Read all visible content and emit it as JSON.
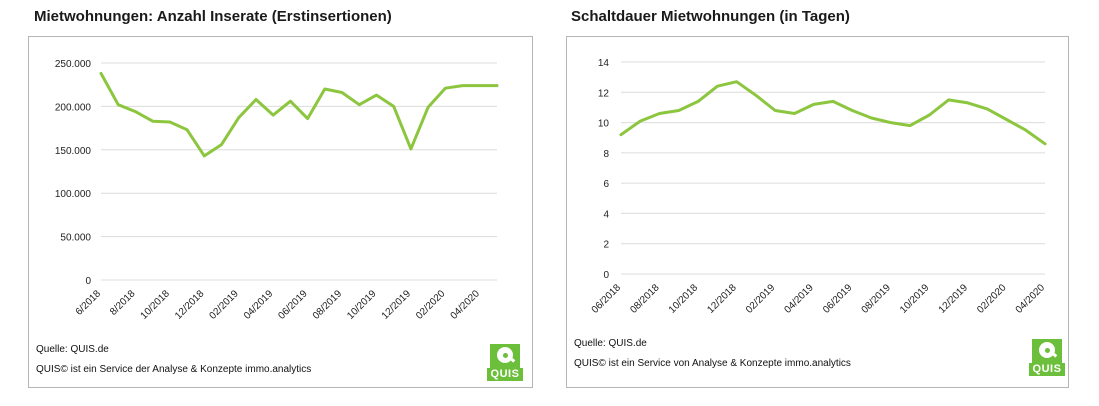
{
  "chart_data": [
    {
      "type": "line",
      "title": "Mietwohnungen: Anzahl Inserate (Erstinsertionen)",
      "x": [
        "6/2018",
        "7/2018",
        "8/2018",
        "9/2018",
        "10/2018",
        "11/2018",
        "12/2018",
        "01/2019",
        "02/2019",
        "03/2019",
        "04/2019",
        "05/2019",
        "06/2019",
        "07/2019",
        "08/2019",
        "09/2019",
        "10/2019",
        "11/2019",
        "12/2019",
        "01/2020",
        "02/2020",
        "03/2020",
        "04/2020",
        "05/2020"
      ],
      "x_tick_labels": [
        "6/2018",
        "8/2018",
        "10/2018",
        "12/2018",
        "02/2019",
        "04/2019",
        "06/2019",
        "08/2019",
        "10/2019",
        "12/2019",
        "02/2020",
        "04/2020"
      ],
      "series": [
        {
          "values": [
            238000,
            202000,
            194000,
            183000,
            182000,
            173000,
            143000,
            156000,
            187000,
            208000,
            190000,
            206000,
            186000,
            220000,
            216000,
            202000,
            213000,
            200000,
            151000,
            199000,
            221000,
            224000,
            224000,
            224000
          ]
        }
      ],
      "y_ticks": [
        "0",
        "50.000",
        "100.000",
        "150.000",
        "200.000",
        "250.000"
      ],
      "ylim": [
        0,
        250000
      ],
      "grid": true,
      "color": "#8cc63f"
    },
    {
      "type": "line",
      "title": "Schaltdauer Mietwohnungen (in Tagen)",
      "x": [
        "06/2018",
        "07/2018",
        "08/2018",
        "09/2018",
        "10/2018",
        "11/2018",
        "12/2018",
        "01/2019",
        "02/2019",
        "03/2019",
        "04/2019",
        "05/2019",
        "06/2019",
        "07/2019",
        "08/2019",
        "09/2019",
        "10/2019",
        "11/2019",
        "12/2019",
        "01/2020",
        "02/2020",
        "03/2020",
        "04/2020"
      ],
      "x_tick_labels": [
        "06/2018",
        "08/2018",
        "10/2018",
        "12/2018",
        "02/2019",
        "04/2019",
        "06/2019",
        "08/2019",
        "10/2019",
        "12/2019",
        "02/2020",
        "04/2020"
      ],
      "series": [
        {
          "values": [
            9.2,
            10.1,
            10.6,
            10.8,
            11.4,
            12.4,
            12.7,
            11.8,
            10.8,
            10.6,
            11.2,
            11.4,
            10.8,
            10.3,
            10.0,
            9.8,
            10.5,
            11.5,
            11.3,
            10.9,
            10.2,
            9.5,
            8.6
          ]
        }
      ],
      "y_ticks": [
        "0",
        "2",
        "4",
        "6",
        "8",
        "10",
        "12",
        "14"
      ],
      "ylim": [
        0,
        14
      ],
      "grid": true,
      "color": "#8cc63f"
    }
  ],
  "panels": [
    {
      "source": "Quelle: QUIS.de",
      "credit": "QUIS© ist ein Service der Analyse & Konzepte immo.analytics",
      "logo_text": "QUIS"
    },
    {
      "source": "Quelle: QUIS.de",
      "credit": "QUIS© ist ein Service von Analyse & Konzepte immo.analytics",
      "logo_text": "QUIS"
    }
  ]
}
